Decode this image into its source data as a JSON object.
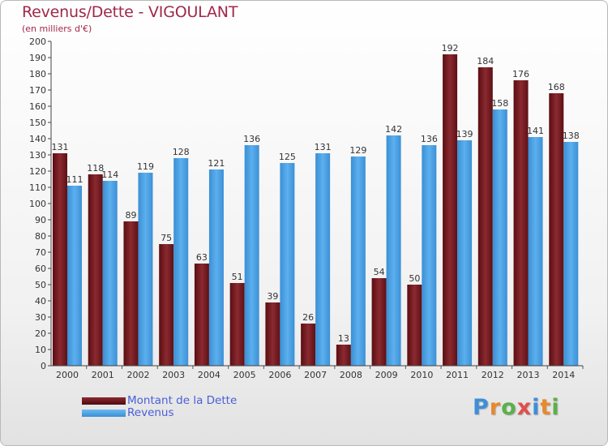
{
  "title": "Revenus/Dette - VIGOULANT",
  "subtitle": "(en milliers d'€)",
  "colors": {
    "dette": "#7a1f24",
    "revenus": "#4ea3e2",
    "title": "#a0284a",
    "legend_text": "#4a5ed8"
  },
  "chart_data": {
    "type": "bar",
    "categories": [
      "2000",
      "2001",
      "2002",
      "2003",
      "2004",
      "2005",
      "2006",
      "2007",
      "2008",
      "2009",
      "2010",
      "2011",
      "2012",
      "2013",
      "2014"
    ],
    "series": [
      {
        "name": "Montant de la Dette",
        "values": [
          131,
          118,
          89,
          75,
          63,
          51,
          39,
          26,
          13,
          54,
          50,
          192,
          184,
          176,
          168
        ]
      },
      {
        "name": "Revenus",
        "values": [
          111,
          114,
          119,
          128,
          121,
          136,
          125,
          131,
          129,
          142,
          136,
          139,
          158,
          141,
          138
        ]
      }
    ],
    "ylim": [
      0,
      200
    ],
    "ytick_step": 10,
    "grid": false,
    "legend": "bottom-left"
  },
  "legend": {
    "dette_label": "Montant de la Dette",
    "revenus_label": "Revenus"
  },
  "logo": {
    "text": "Proxiti"
  }
}
